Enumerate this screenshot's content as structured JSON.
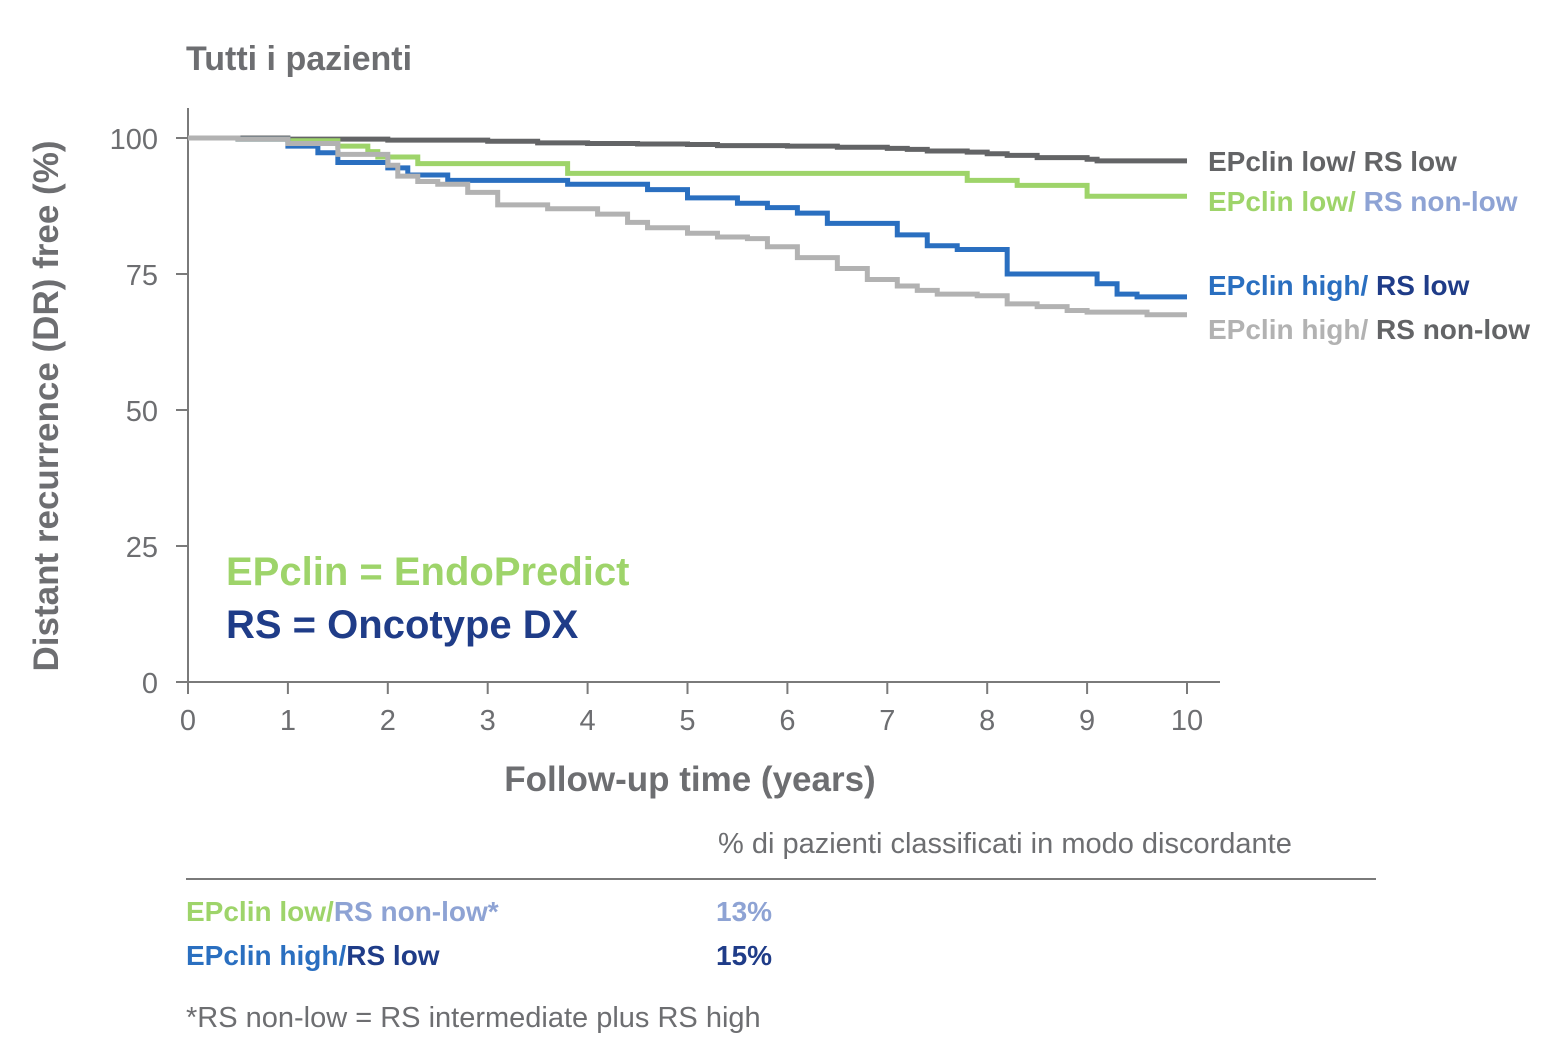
{
  "colors": {
    "dark_gray": "#636466",
    "light_gray": "#b2b2b2",
    "green": "#9ed46a",
    "mid_blue": "#2a6fc0",
    "navy": "#1f3c88",
    "light_blue": "#8ea3d4",
    "text_gray": "#6d6e71"
  },
  "chart_data": {
    "type": "line",
    "title": "Tutti i pazienti",
    "xlabel": "Follow-up time (years)",
    "ylabel": "Distant recurrence (DR) free (%)",
    "xlim": [
      0,
      10
    ],
    "ylim": [
      0,
      100
    ],
    "xticks": [
      "0",
      "1",
      "2",
      "3",
      "4",
      "5",
      "6",
      "7",
      "8",
      "9",
      "10"
    ],
    "yticks": [
      "0",
      "25",
      "50",
      "75",
      "100"
    ],
    "grid": false,
    "step": true,
    "series": [
      {
        "name": "EPclin low/ RS low",
        "color": "#636466",
        "points": [
          [
            0,
            100
          ],
          [
            1,
            99.8
          ],
          [
            2,
            99.6
          ],
          [
            3,
            99.4
          ],
          [
            3.5,
            99.1
          ],
          [
            4,
            99
          ],
          [
            4.5,
            98.9
          ],
          [
            5,
            98.8
          ],
          [
            5.3,
            98.6
          ],
          [
            6,
            98.5
          ],
          [
            6.5,
            98.3
          ],
          [
            7,
            98.1
          ],
          [
            7.2,
            97.9
          ],
          [
            7.4,
            97.6
          ],
          [
            7.8,
            97.4
          ],
          [
            8,
            97.1
          ],
          [
            8.2,
            96.8
          ],
          [
            8.5,
            96.4
          ],
          [
            9,
            96.1
          ],
          [
            9.1,
            95.8
          ],
          [
            10,
            95.8
          ]
        ]
      },
      {
        "name": "EPclin low/ RS non-low",
        "color": "#9ed46a",
        "points": [
          [
            0,
            100
          ],
          [
            0.5,
            99.8
          ],
          [
            1,
            99.5
          ],
          [
            1.5,
            98.5
          ],
          [
            1.8,
            97.5
          ],
          [
            1.9,
            96.5
          ],
          [
            2.3,
            95.3
          ],
          [
            3.8,
            93.5
          ],
          [
            5.5,
            93.5
          ],
          [
            7.8,
            92.2
          ],
          [
            8.3,
            91.3
          ],
          [
            9,
            89.3
          ],
          [
            10,
            89.3
          ]
        ]
      },
      {
        "name": "EPclin high/ RS low",
        "color": "#2a6fc0",
        "points": [
          [
            0,
            100
          ],
          [
            0.5,
            99.8
          ],
          [
            1,
            98.5
          ],
          [
            1.3,
            97.3
          ],
          [
            1.5,
            95.5
          ],
          [
            2,
            94.5
          ],
          [
            2.2,
            93.2
          ],
          [
            2.6,
            92.2
          ],
          [
            3.8,
            91.5
          ],
          [
            4.6,
            90.5
          ],
          [
            5,
            89
          ],
          [
            5.5,
            88
          ],
          [
            5.8,
            87.2
          ],
          [
            6.1,
            86.2
          ],
          [
            6.4,
            84.3
          ],
          [
            7.1,
            82.2
          ],
          [
            7.4,
            80.2
          ],
          [
            7.7,
            79.5
          ],
          [
            8.2,
            75
          ],
          [
            9.1,
            73.2
          ],
          [
            9.3,
            71.3
          ],
          [
            9.5,
            70.8
          ],
          [
            10,
            70.8
          ]
        ]
      },
      {
        "name": "EPclin high/ RS non-low",
        "color": "#b2b2b2",
        "points": [
          [
            0,
            100
          ],
          [
            0.5,
            99.8
          ],
          [
            1,
            99
          ],
          [
            1.5,
            97
          ],
          [
            2,
            95
          ],
          [
            2.1,
            93
          ],
          [
            2.3,
            92
          ],
          [
            2.5,
            91.5
          ],
          [
            2.8,
            90
          ],
          [
            3.1,
            87.7
          ],
          [
            3.6,
            87
          ],
          [
            4.1,
            86
          ],
          [
            4.4,
            84.5
          ],
          [
            4.6,
            83.5
          ],
          [
            5,
            82.5
          ],
          [
            5.3,
            81.8
          ],
          [
            5.6,
            81.5
          ],
          [
            5.8,
            80
          ],
          [
            6.1,
            78
          ],
          [
            6.5,
            76
          ],
          [
            6.8,
            74
          ],
          [
            7.1,
            72.8
          ],
          [
            7.3,
            72
          ],
          [
            7.5,
            71.3
          ],
          [
            7.9,
            71
          ],
          [
            8.2,
            69.5
          ],
          [
            8.5,
            69
          ],
          [
            8.8,
            68.3
          ],
          [
            9,
            68
          ],
          [
            9.6,
            67.5
          ],
          [
            10,
            67.5
          ]
        ]
      }
    ],
    "legend": {
      "placement": "right",
      "entries": [
        {
          "parts": [
            {
              "text": "EPclin low/",
              "color": "#636466"
            },
            {
              "text": " RS low",
              "color": "#636466"
            }
          ]
        },
        {
          "parts": [
            {
              "text": "EPclin low/",
              "color": "#9ed46a"
            },
            {
              "text": " RS non-low",
              "color": "#8ea3d4"
            }
          ]
        },
        {
          "parts": [
            {
              "text": "EPclin high/",
              "color": "#2a6fc0"
            },
            {
              "text": " RS low",
              "color": "#1f3c88"
            }
          ]
        },
        {
          "parts": [
            {
              "text": "EPclin high/",
              "color": "#b2b2b2"
            },
            {
              "text": " RS non-low",
              "color": "#636466"
            }
          ]
        }
      ]
    },
    "annotations": [
      {
        "text": "EPclin = EndoPredict",
        "color": "#9ed46a"
      },
      {
        "text": "RS = Oncotype DX",
        "color": "#1f3c88"
      }
    ]
  },
  "table": {
    "header": "% di pazienti classificati in modo discordante",
    "rows": [
      {
        "label_a": "EPclin low/",
        "label_b": "RS non-low*",
        "value": "13%",
        "color_a": "#9ed46a",
        "color_b": "#8ea3d4",
        "color_value": "#8ea3d4"
      },
      {
        "label_a": "EPclin high/",
        "label_b": "RS low",
        "value": "15%",
        "color_a": "#2a6fc0",
        "color_b": "#1f3c88",
        "color_value": "#1f3c88"
      }
    ]
  },
  "footnote": "*RS non-low = RS intermediate plus RS high"
}
